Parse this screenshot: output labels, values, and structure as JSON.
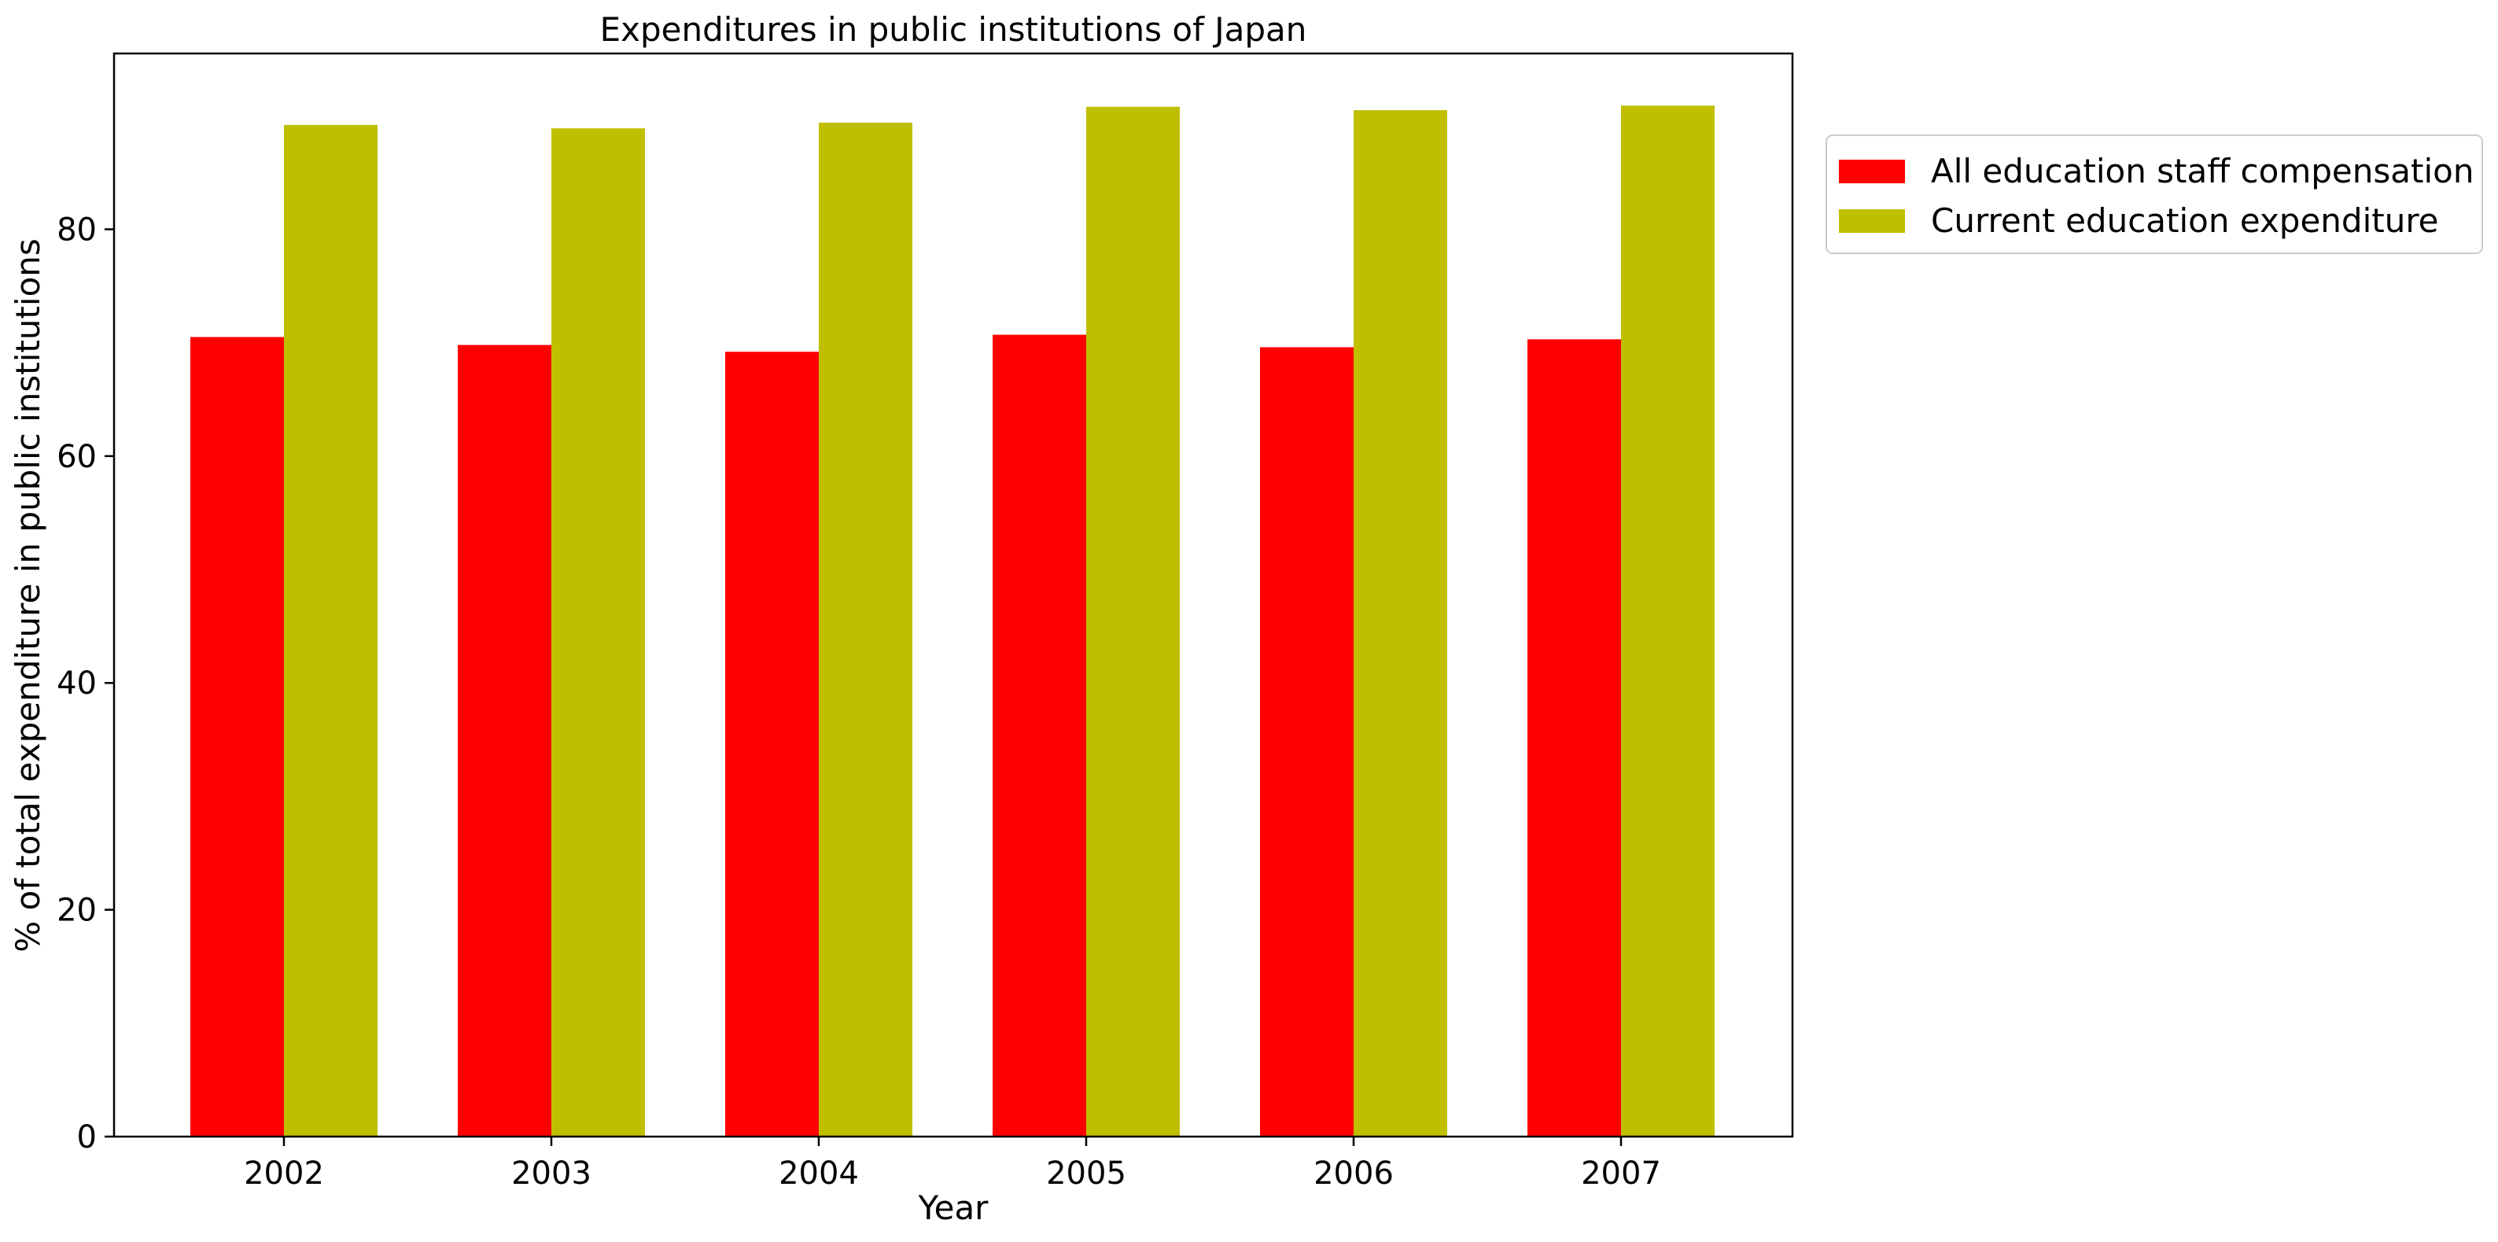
{
  "chart_data": {
    "type": "bar",
    "title": "Expenditures in public institutions of Japan",
    "xlabel": "Year",
    "ylabel": "% of total expenditure in public institutions",
    "categories": [
      "2002",
      "2003",
      "2004",
      "2005",
      "2006",
      "2007"
    ],
    "series": [
      {
        "name": "All education staff compensation",
        "color": "#ff0000",
        "values": [
          70.5,
          69.8,
          69.2,
          70.7,
          69.6,
          70.3
        ]
      },
      {
        "name": "Current education expenditure",
        "color": "#bfbf00",
        "values": [
          89.2,
          88.9,
          89.4,
          90.8,
          90.5,
          90.9
        ]
      }
    ],
    "ylim": [
      0,
      95.5
    ],
    "yticks": [
      0,
      20,
      40,
      60,
      80
    ],
    "grid": false,
    "legend_position": "outside-right-top"
  }
}
